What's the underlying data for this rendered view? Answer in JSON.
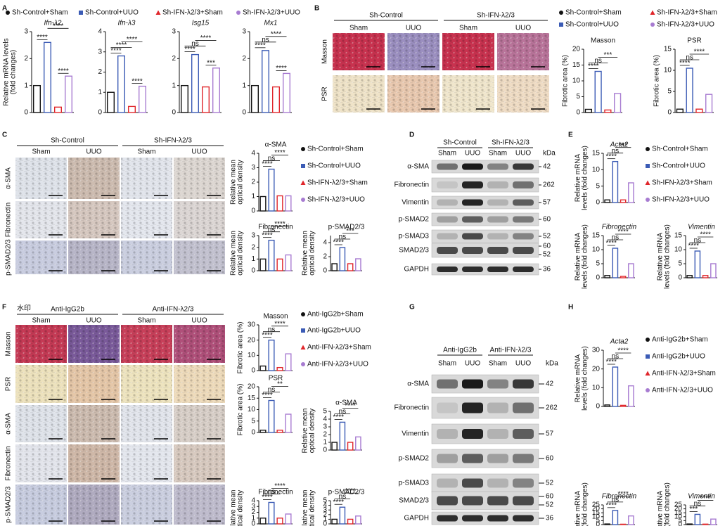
{
  "panel_labels": [
    "A",
    "B",
    "C",
    "D",
    "E",
    "F",
    "G",
    "H"
  ],
  "legends": [
    {
      "items": [
        {
          "name": "Sh-Control+Sham",
          "color": "#111111"
        },
        {
          "name": "Sh-Control+UUO",
          "color": "#3b5bb5"
        },
        {
          "name": "Sh-IFN-λ2/3+Sham",
          "color": "#e0262b"
        },
        {
          "name": "Sh-IFN-λ2/3+UUO",
          "color": "#a77bd1"
        }
      ]
    },
    {
      "items": [
        {
          "name": "Sh-Control+Sham",
          "color": "#111111"
        },
        {
          "name": "Sh-Control+UUO",
          "color": "#3b5bb5"
        },
        {
          "name": "Sh-IFN-λ2/3+Sham",
          "color": "#e0262b"
        },
        {
          "name": "Sh-IFN-λ2/3+UUO",
          "color": "#a77bd1"
        }
      ]
    },
    {
      "items": [
        {
          "name": "Sh-Control+Sham",
          "color": "#111111"
        },
        {
          "name": "Sh-Control+UUO",
          "color": "#3b5bb5"
        },
        {
          "name": "Sh-IFN-λ2/3+Sham",
          "color": "#e0262b"
        },
        {
          "name": "Sh-IFN-λ2/3+UUO",
          "color": "#a77bd1"
        }
      ]
    },
    {
      "items": [
        {
          "name": "Sh-Control+Sham",
          "color": "#111111"
        },
        {
          "name": "Sh-Control+UUO",
          "color": "#3b5bb5"
        },
        {
          "name": "Sh-IFN-λ2/3+Sham",
          "color": "#e0262b"
        },
        {
          "name": "Sh-IFN-λ2/3+UUO",
          "color": "#a77bd1"
        }
      ]
    },
    {
      "items": [
        {
          "name": "Anti-IgG2b+Sham",
          "color": "#111111"
        },
        {
          "name": "Anti-IgG2b+UUO",
          "color": "#3b5bb5"
        },
        {
          "name": "Anti-IFN-λ2/3+Sham",
          "color": "#e0262b"
        },
        {
          "name": "Anti-IFN-λ2/3+UUO",
          "color": "#a77bd1"
        }
      ]
    },
    {
      "items": [
        {
          "name": "Anti-IgG2b+Sham",
          "color": "#111111"
        },
        {
          "name": "Anti-IgG2b+UUO",
          "color": "#3b5bb5"
        },
        {
          "name": "Anti-IFN-λ2/3+Sham",
          "color": "#e0262b"
        },
        {
          "name": "Anti-IFN-λ2/3+UUO",
          "color": "#a77bd1"
        }
      ]
    }
  ],
  "chart_data": [
    {
      "type": "bar",
      "title": "Ifn-λ2",
      "title_italic": true,
      "ylabel": [
        "Relative mRNA levels",
        "(fold changes)"
      ],
      "values": [
        1,
        2.6,
        0.2,
        1.35
      ],
      "colors": [
        "#111111",
        "#3b5bb5",
        "#e0262b",
        "#a77bd1"
      ],
      "ylim": [
        0,
        3
      ],
      "yticks": [
        0,
        1,
        2,
        3
      ],
      "annotations": [
        "****",
        "****",
        "****"
      ]
    },
    {
      "type": "bar",
      "title": "Ifn-λ3",
      "title_italic": true,
      "values": [
        1,
        2.8,
        0.3,
        1.3
      ],
      "colors": [
        "#111111",
        "#3b5bb5",
        "#e0262b",
        "#a77bd1"
      ],
      "ylim": [
        0,
        4
      ],
      "yticks": [
        0,
        1,
        2,
        3,
        4
      ],
      "annotations": [
        "****",
        "****",
        "****",
        "****"
      ]
    },
    {
      "type": "bar",
      "title": "Isg15",
      "title_italic": true,
      "values": [
        1,
        2.15,
        0.95,
        1.65
      ],
      "colors": [
        "#111111",
        "#3b5bb5",
        "#e0262b",
        "#a77bd1"
      ],
      "ylim": [
        0,
        3
      ],
      "yticks": [
        0,
        1,
        2,
        3
      ],
      "annotations": [
        "****",
        "ns",
        "****",
        "***"
      ]
    },
    {
      "type": "bar",
      "title": "Mx1",
      "title_italic": true,
      "values": [
        1,
        2.3,
        0.95,
        1.45
      ],
      "colors": [
        "#111111",
        "#3b5bb5",
        "#e0262b",
        "#a77bd1"
      ],
      "ylim": [
        0,
        3
      ],
      "yticks": [
        0,
        1,
        2,
        3
      ],
      "annotations": [
        "****",
        "ns",
        "****",
        "****"
      ]
    },
    {
      "type": "bar",
      "title": "Masson",
      "ylabel": [
        "Fibrotic area (%)"
      ],
      "values": [
        1,
        13,
        0.8,
        6
      ],
      "colors": [
        "#111111",
        "#3b5bb5",
        "#e0262b",
        "#a77bd1"
      ],
      "ylim": [
        0,
        20
      ],
      "yticks": [
        0,
        5,
        10,
        15,
        20
      ],
      "annotations": [
        "****",
        "ns",
        "***"
      ]
    },
    {
      "type": "bar",
      "title": "PSR",
      "ylabel": [
        "Fibrotic area (%)"
      ],
      "values": [
        0.8,
        10.5,
        0.8,
        4.3
      ],
      "colors": [
        "#111111",
        "#3b5bb5",
        "#e0262b",
        "#a77bd1"
      ],
      "ylim": [
        0,
        15
      ],
      "yticks": [
        0,
        5,
        10,
        15
      ],
      "annotations": [
        "****",
        "ns",
        "****"
      ]
    },
    {
      "type": "bar",
      "title": "α-SMA",
      "ylabel": [
        "Relative mean",
        "optical density"
      ],
      "values": [
        1,
        2.9,
        1.05,
        1.05
      ],
      "colors": [
        "#111111",
        "#3b5bb5",
        "#e0262b",
        "#a77bd1"
      ],
      "ylim": [
        0,
        4
      ],
      "yticks": [
        0,
        1,
        2,
        3,
        4
      ],
      "annotations": [
        "****",
        "ns",
        "****"
      ]
    },
    {
      "type": "bar",
      "title": "Fibronectin",
      "ylabel": [
        "Relative mean",
        "optical density"
      ],
      "values": [
        1,
        2.6,
        1,
        1.35
      ],
      "colors": [
        "#111111",
        "#3b5bb5",
        "#e0262b",
        "#a77bd1"
      ],
      "ylim": [
        0,
        3
      ],
      "yticks": [
        0,
        1,
        2,
        3
      ],
      "annotations": [
        "****",
        "ns",
        "****"
      ]
    },
    {
      "type": "bar",
      "title": "p-SMAD2/3",
      "ylabel": [
        "Relative mean",
        "optical density"
      ],
      "values": [
        1,
        3.3,
        1,
        1.7
      ],
      "colors": [
        "#111111",
        "#3b5bb5",
        "#e0262b",
        "#a77bd1"
      ],
      "ylim": [
        0,
        5
      ],
      "yticks": [
        0,
        2,
        4
      ],
      "annotations": [
        "****",
        "ns",
        "***"
      ]
    },
    {
      "type": "bar",
      "title": "Acta2",
      "title_italic": true,
      "ylabel": [
        "Relative mRNA",
        "levels (fold changes)"
      ],
      "values": [
        0.8,
        12.5,
        0.8,
        6
      ],
      "colors": [
        "#111111",
        "#3b5bb5",
        "#e0262b",
        "#a77bd1"
      ],
      "ylim": [
        0,
        15
      ],
      "yticks": [
        0,
        5,
        10,
        15
      ],
      "annotations": [
        "****",
        "ns",
        "***"
      ]
    },
    {
      "type": "bar",
      "title": "Fibronectin",
      "title_italic": true,
      "ylabel": [
        "Relative mRNA",
        "levels (fold changes)"
      ],
      "values": [
        0.8,
        10.5,
        0.5,
        5
      ],
      "colors": [
        "#111111",
        "#3b5bb5",
        "#e0262b",
        "#a77bd1"
      ],
      "ylim": [
        0,
        15
      ],
      "yticks": [
        0,
        5,
        10,
        15
      ],
      "annotations": [
        "****",
        "ns",
        "****"
      ]
    },
    {
      "type": "bar",
      "title": "Vimentin",
      "title_italic": true,
      "ylabel": [
        "Relative mRNA",
        "levels (fold changes)"
      ],
      "values": [
        0.8,
        9.5,
        0.8,
        5
      ],
      "colors": [
        "#111111",
        "#3b5bb5",
        "#e0262b",
        "#a77bd1"
      ],
      "ylim": [
        0,
        15
      ],
      "yticks": [
        0,
        5,
        10,
        15
      ],
      "annotations": [
        "****",
        "ns",
        "****"
      ]
    },
    {
      "type": "bar",
      "title": "Masson",
      "ylabel": [
        "Fibrotic area (%)"
      ],
      "values": [
        3,
        20,
        2,
        11
      ],
      "colors": [
        "#111111",
        "#3b5bb5",
        "#e0262b",
        "#a77bd1"
      ],
      "ylim": [
        0,
        30
      ],
      "yticks": [
        0,
        10,
        20,
        30
      ],
      "annotations": [
        "****",
        "ns",
        "****"
      ]
    },
    {
      "type": "bar",
      "title": "PSR",
      "ylabel": [
        "Fibrotic area (%)"
      ],
      "values": [
        1,
        14,
        1,
        8
      ],
      "colors": [
        "#111111",
        "#3b5bb5",
        "#e0262b",
        "#a77bd1"
      ],
      "ylim": [
        0,
        20
      ],
      "yticks": [
        0,
        5,
        10,
        15,
        20
      ],
      "annotations": [
        "****",
        "ns",
        "**"
      ]
    },
    {
      "type": "bar",
      "title": "α-SMA",
      "ylabel": [
        "Relative mean",
        "optical density"
      ],
      "values": [
        1,
        3.6,
        1,
        1.7
      ],
      "colors": [
        "#111111",
        "#3b5bb5",
        "#e0262b",
        "#a77bd1"
      ],
      "ylim": [
        0,
        5
      ],
      "yticks": [
        0,
        1,
        2,
        3,
        4,
        5
      ],
      "annotations": [
        "****",
        "ns",
        "****"
      ]
    },
    {
      "type": "bar",
      "title": "Fibronectin",
      "ylabel": [
        "Relative mean",
        "optical density"
      ],
      "values": [
        1,
        3.7,
        1,
        1.7
      ],
      "colors": [
        "#111111",
        "#3b5bb5",
        "#e0262b",
        "#a77bd1"
      ],
      "ylim": [
        0,
        4
      ],
      "yticks": [
        0,
        1,
        2,
        3,
        4
      ],
      "annotations": [
        "****",
        "ns",
        "****"
      ]
    },
    {
      "type": "bar",
      "title": "p-SMAD2/3",
      "ylabel": [
        "Relative mean",
        "optical density"
      ],
      "values": [
        1,
        3.6,
        1,
        1.7
      ],
      "colors": [
        "#111111",
        "#3b5bb5",
        "#e0262b",
        "#a77bd1"
      ],
      "ylim": [
        0,
        5
      ],
      "yticks": [
        0,
        1,
        2,
        3,
        4,
        5
      ],
      "annotations": [
        "****",
        "ns",
        "****"
      ]
    },
    {
      "type": "bar",
      "title": "Acta2",
      "title_italic": true,
      "ylabel": [
        "Relative mRNA",
        "levels (fold changes)"
      ],
      "values": [
        0.8,
        21,
        0.6,
        11
      ],
      "colors": [
        "#111111",
        "#3b5bb5",
        "#e0262b",
        "#a77bd1"
      ],
      "ylim": [
        0,
        30
      ],
      "yticks": [
        0,
        10,
        20,
        30
      ],
      "annotations": [
        "****",
        "ns",
        "****"
      ]
    },
    {
      "type": "bar",
      "title": "Fibronectin",
      "title_italic": true,
      "ylabel": [
        "Relative mRNA",
        "levels (fold changes)"
      ],
      "values": [
        0.8,
        18,
        0.5,
        11
      ],
      "colors": [
        "#111111",
        "#3b5bb5",
        "#e0262b",
        "#a77bd1"
      ],
      "ylim": [
        0,
        25
      ],
      "yticks": [
        0,
        5,
        10,
        15,
        20,
        25
      ],
      "annotations": [
        "****",
        "ns",
        "****"
      ]
    },
    {
      "type": "bar",
      "title": "Vimentin",
      "title_italic": true,
      "ylabel": [
        "Relative mRNA",
        "levels (fold changes)"
      ],
      "values": [
        0.8,
        13,
        0.6,
        7
      ],
      "colors": [
        "#111111",
        "#3b5bb5",
        "#e0262b",
        "#a77bd1"
      ],
      "ylim": [
        0,
        25
      ],
      "yticks": [
        0,
        5,
        10,
        15,
        20,
        25
      ],
      "annotations": [
        "***",
        "ns",
        "****"
      ]
    }
  ],
  "micrographs": [
    {
      "groups": [
        "Sh-Control",
        "Sh-IFN-λ2/3"
      ],
      "columns": [
        "Sham",
        "UUO",
        "Sham",
        "UUO"
      ],
      "rows": [
        "Masson",
        "PSR"
      ]
    },
    {
      "groups": [
        "Sh-Control",
        "Sh-IFN-λ2/3"
      ],
      "columns": [
        "Sham",
        "UUO",
        "Sham",
        "UUO"
      ],
      "rows": [
        "α-SMA",
        "Fibronectin",
        "p-SMAD2/3"
      ]
    },
    {
      "watermark": "水印",
      "groups": [
        "Anti-IgG2b",
        "Anti-IFN-λ2/3"
      ],
      "columns": [
        "Sham",
        "UUO",
        "Sham",
        "UUO"
      ],
      "rows": [
        "Masson",
        "PSR",
        "α-SMA",
        "Fibronectin",
        "p-SMAD2/3"
      ]
    }
  ],
  "blots": [
    {
      "groups": [
        "Sh-Control",
        "Sh-IFN-λ2/3"
      ],
      "lanes": [
        "Sham",
        "UUO",
        "Sham",
        "UUO"
      ],
      "unit": "kDa",
      "proteins": [
        {
          "name": "α-SMA",
          "kda": [
            42
          ]
        },
        {
          "name": "Fibronectin",
          "kda": [
            262
          ]
        },
        {
          "name": "Vimentin",
          "kda": [
            57
          ]
        },
        {
          "name": "p-SMAD2",
          "kda": [
            60
          ]
        },
        {
          "name": "p-SMAD3",
          "kda": [
            52
          ]
        },
        {
          "name": "SMAD2/3",
          "kda": [
            60,
            52
          ]
        },
        {
          "name": "GAPDH",
          "kda": [
            36
          ]
        }
      ]
    },
    {
      "groups": [
        "Anti-IgG2b",
        "Anti-IFN-λ2/3"
      ],
      "lanes": [
        "Sham",
        "UUO",
        "Sham",
        "UUO"
      ],
      "unit": "kDa",
      "proteins": [
        {
          "name": "α-SMA",
          "kda": [
            42
          ]
        },
        {
          "name": "Fibronectin",
          "kda": [
            262
          ]
        },
        {
          "name": "Vimentin",
          "kda": [
            57
          ]
        },
        {
          "name": "p-SMAD2",
          "kda": [
            60
          ]
        },
        {
          "name": "p-SMAD3",
          "kda": [
            52
          ]
        },
        {
          "name": "SMAD2/3",
          "kda": [
            60,
            52
          ]
        },
        {
          "name": "GAPDH",
          "kda": [
            36
          ]
        }
      ]
    }
  ]
}
